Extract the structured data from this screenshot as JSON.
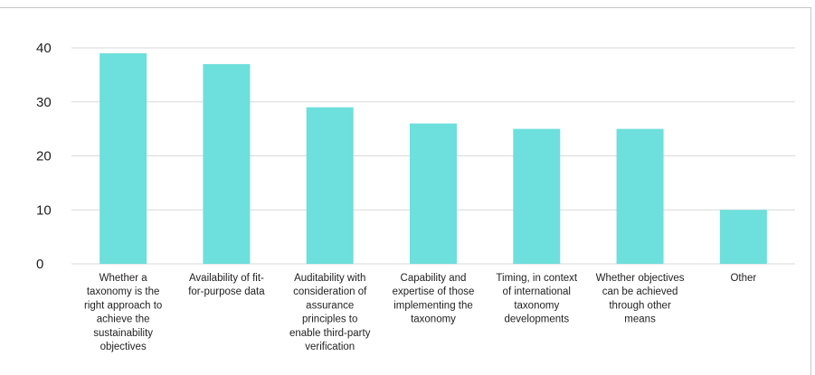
{
  "chart_data": {
    "type": "bar",
    "categories": [
      [
        "Whether a",
        "taxonomy is the",
        "right approach to",
        "achieve the",
        "sustainability",
        "objectives"
      ],
      [
        "Availability of fit-",
        "for-purpose data"
      ],
      [
        "Auditability with",
        "consideration of",
        "assurance",
        "principles to",
        "enable third-party",
        "verification"
      ],
      [
        "Capability and",
        "expertise of those",
        "implementing the",
        "taxonomy"
      ],
      [
        "Timing, in context",
        "of international",
        "taxonomy",
        "developments"
      ],
      [
        "Whether objectives",
        "can be achieved",
        "through other",
        "means"
      ],
      [
        "Other"
      ]
    ],
    "values": [
      39,
      37,
      29,
      26,
      25,
      25,
      10
    ],
    "ylim": [
      0,
      40
    ],
    "yticks": [
      0,
      10,
      20,
      30,
      40
    ],
    "grid": true,
    "bar_color": "#6ddfdc",
    "grid_color": "#d9d9d9",
    "text_color": "#1f1f1f"
  }
}
